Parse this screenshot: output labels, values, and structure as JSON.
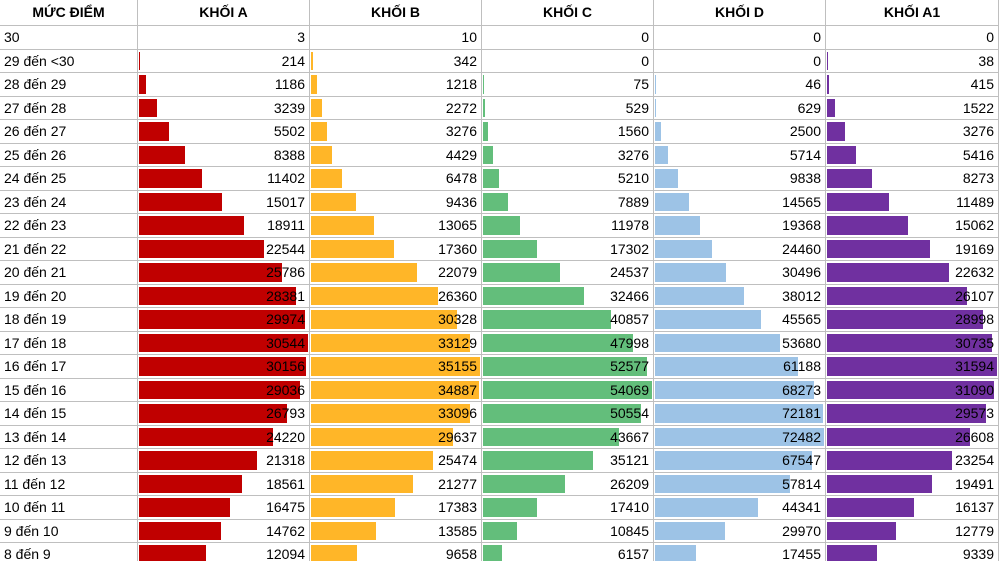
{
  "table": {
    "header": [
      "MỨC ĐIỂM",
      "KHỐI A",
      "KHỐI B",
      "KHỐI C",
      "KHỐI D",
      "KHỐI A1"
    ],
    "bar_colors": [
      "#c00000",
      "#ffb628",
      "#63be7b",
      "#9dc3e6",
      "#7030a0"
    ],
    "rows": [
      [
        "30",
        3,
        10,
        0,
        0,
        0
      ],
      [
        "29 đến <30",
        214,
        342,
        0,
        0,
        38
      ],
      [
        "28 đến 29",
        1186,
        1218,
        75,
        46,
        415
      ],
      [
        "27 đến 28",
        3239,
        2272,
        529,
        629,
        1522
      ],
      [
        "26 đến 27",
        5502,
        3276,
        1560,
        2500,
        3276
      ],
      [
        "25 đến 26",
        8388,
        4429,
        3276,
        5714,
        5416
      ],
      [
        "24 đến 25",
        11402,
        6478,
        5210,
        9838,
        8273
      ],
      [
        "23 đến 24",
        15017,
        9436,
        7889,
        14565,
        11489
      ],
      [
        "22 đến 23",
        18911,
        13065,
        11978,
        19368,
        15062
      ],
      [
        "21 đến 22",
        22544,
        17360,
        17302,
        24460,
        19169
      ],
      [
        "20 đến 21",
        25786,
        22079,
        24537,
        30496,
        22632
      ],
      [
        "19 đến 20",
        28381,
        26360,
        32466,
        38012,
        26107
      ],
      [
        "18 đến 19",
        29974,
        30328,
        40857,
        45565,
        28998
      ],
      [
        "17 đến 18",
        30544,
        33129,
        47998,
        53680,
        30735
      ],
      [
        "16 đến 17",
        30156,
        35155,
        52577,
        61188,
        31594
      ],
      [
        "15 đến 16",
        29036,
        34887,
        54069,
        68273,
        31090
      ],
      [
        "14 đến 15",
        26793,
        33096,
        50554,
        72181,
        29573
      ],
      [
        "13 đến 14",
        24220,
        29637,
        43667,
        72482,
        26608
      ],
      [
        "12 đến 13",
        21318,
        25474,
        35121,
        67547,
        23254
      ],
      [
        "11 đến 12",
        18561,
        21277,
        26209,
        57814,
        19491
      ],
      [
        "10 đến 11",
        16475,
        17383,
        17410,
        44341,
        16137
      ],
      [
        "9 đến 10",
        14762,
        13585,
        10845,
        29970,
        12779
      ],
      [
        "8 đến 9",
        12094,
        9658,
        6157,
        17455,
        9339
      ]
    ]
  }
}
